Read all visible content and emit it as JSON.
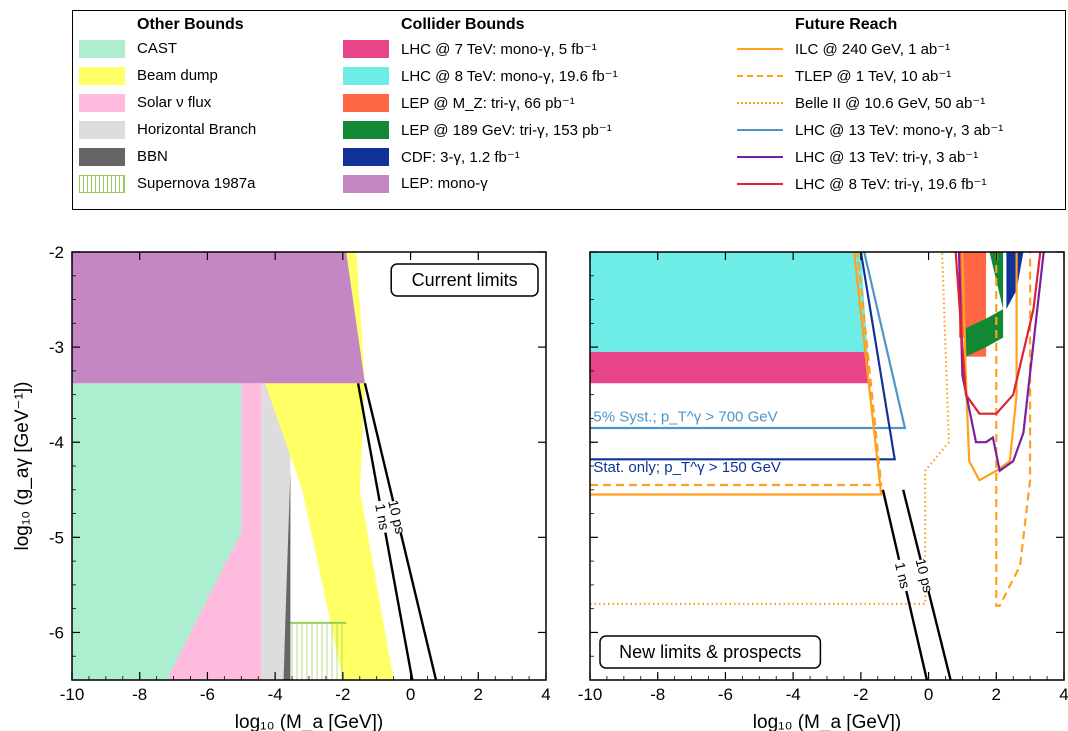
{
  "legend": {
    "groups": [
      {
        "title": "Other Bounds",
        "items": [
          {
            "label": "CAST",
            "color": "#aeeed0",
            "kind": "fill"
          },
          {
            "label": "Beam dump",
            "color": "#ffff66",
            "kind": "fill"
          },
          {
            "label": "Solar ν flux",
            "color": "#ffbbdd",
            "kind": "fill"
          },
          {
            "label": "Horizontal Branch",
            "color": "#dddddd",
            "kind": "fill"
          },
          {
            "label": "BBN",
            "color": "#666666",
            "kind": "fill"
          },
          {
            "label": "Supernova 1987a",
            "color": "#ffffff",
            "edge": "#99cc55",
            "kind": "hatch"
          }
        ]
      },
      {
        "title": "Collider Bounds",
        "items": [
          {
            "label": "LHC @ 7 TeV: mono-γ, 5 fb⁻¹",
            "color": "#e8448a",
            "kind": "fill"
          },
          {
            "label": "LHC @ 8 TeV: mono-γ, 19.6 fb⁻¹",
            "color": "#6eece6",
            "kind": "fill"
          },
          {
            "label": "LEP @ M_Z: tri-γ, 66 pb⁻¹",
            "color": "#ff6644",
            "kind": "fill"
          },
          {
            "label": "LEP @ 189 GeV: tri-γ, 153 pb⁻¹",
            "color": "#118833",
            "kind": "fill"
          },
          {
            "label": "CDF: 3-γ, 1.2 fb⁻¹",
            "color": "#113399",
            "kind": "fill"
          },
          {
            "label": "LEP: mono-γ",
            "color": "#c587c4",
            "kind": "fill"
          }
        ]
      },
      {
        "title": "Future Reach",
        "items": [
          {
            "label": "ILC @ 240 GeV, 1 ab⁻¹",
            "color": "#ffa020",
            "kind": "solid"
          },
          {
            "label": "TLEP @ 1 TeV, 10 ab⁻¹",
            "color": "#ffa020",
            "kind": "dashed"
          },
          {
            "label": "Belle II @ 10.6 GeV, 50 ab⁻¹",
            "color": "#ffa020",
            "kind": "dotted"
          },
          {
            "label": "LHC @ 13 TeV: mono-γ, 3 ab⁻¹",
            "color": "#4f94c8",
            "kind": "solid"
          },
          {
            "label": "LHC @ 13 TeV: tri-γ, 3 ab⁻¹",
            "color": "#7a1fa2",
            "kind": "solid"
          },
          {
            "label": "LHC @ 8 TeV: tri-γ, 19.6 fb⁻¹",
            "color": "#dd2233",
            "kind": "solid"
          }
        ]
      }
    ]
  },
  "chart_data": [
    {
      "type": "area",
      "title": "Current limits",
      "xlabel": "log₁₀ (M_a [GeV])",
      "ylabel": "log₁₀ (g_aγ [GeV⁻¹])",
      "xlim": [
        -10,
        4
      ],
      "ylim": [
        -6.5,
        -2
      ],
      "xticks": [
        "-10",
        "-8",
        "-6",
        "-4",
        "-2",
        "0",
        "2",
        "4"
      ],
      "yticks": [
        "-2",
        "-3",
        "-4",
        "-5",
        "-6"
      ],
      "regions": [
        {
          "name": "CAST",
          "color": "#aeeed0",
          "points": [
            [
              -10,
              -3.38
            ],
            [
              -5.0,
              -3.38
            ],
            [
              -5.0,
              -4.95
            ],
            [
              -7.2,
              -6.5
            ],
            [
              -10,
              -6.5
            ]
          ]
        },
        {
          "name": "Solar ν flux",
          "color": "#ffbbdd",
          "points": [
            [
              -5.0,
              -3.38
            ],
            [
              -4.4,
              -3.38
            ],
            [
              -4.4,
              -6.5
            ],
            [
              -7.2,
              -6.5
            ],
            [
              -5.0,
              -4.95
            ]
          ]
        },
        {
          "name": "Horizontal Branch",
          "color": "#dddddd",
          "points": [
            [
              -4.4,
              -3.38
            ],
            [
              -3.55,
              -3.38
            ],
            [
              -3.55,
              -6.5
            ],
            [
              -4.4,
              -6.5
            ]
          ]
        },
        {
          "name": "BBN",
          "color": "#666666",
          "points": [
            [
              -3.7,
              -5.9
            ],
            [
              -3.55,
              -4.3
            ],
            [
              -3.55,
              -6.5
            ],
            [
              -3.75,
              -6.5
            ]
          ]
        },
        {
          "name": "Beam dump",
          "color": "#ffff66",
          "points": [
            [
              -1.9,
              -2.0
            ],
            [
              -1.6,
              -2.0
            ],
            [
              -1.35,
              -3.38
            ],
            [
              -1.5,
              -4.5
            ],
            [
              -0.5,
              -6.5
            ],
            [
              -2.0,
              -6.5
            ],
            [
              -3.2,
              -4.5
            ],
            [
              -4.3,
              -3.38
            ]
          ]
        },
        {
          "name": "LEP: mono-γ",
          "color": "#c587c4",
          "points": [
            [
              -10,
              -2.0
            ],
            [
              -1.9,
              -2.0
            ],
            [
              -1.35,
              -3.38
            ],
            [
              -10,
              -3.38
            ]
          ]
        }
      ],
      "supernova": {
        "color": "#99cc55",
        "x": [
          -3.55,
          -1.9
        ],
        "y": [
          -6.5,
          -5.9
        ]
      },
      "lifetime_lines": [
        {
          "label": "1 ns",
          "points": [
            [
              -1.55,
              -3.38
            ],
            [
              0.05,
              -6.5
            ]
          ]
        },
        {
          "label": "10 ps",
          "points": [
            [
              -1.35,
              -3.38
            ],
            [
              0.75,
              -6.5
            ]
          ]
        }
      ]
    },
    {
      "type": "area",
      "title": "New limits & prospects",
      "xlabel": "log₁₀ (M_a [GeV])",
      "xlim": [
        -10,
        4
      ],
      "ylim": [
        -6.5,
        -2
      ],
      "xticks": [
        "-10",
        "-8",
        "-6",
        "-4",
        "-2",
        "0",
        "2",
        "4"
      ],
      "annotations": [
        {
          "text": "5% Syst.; p_T^γ > 700 GeV",
          "color": "#4f94c8",
          "x": -9.9,
          "y": -3.72
        },
        {
          "text": "Stat. only; p_T^γ > 150 GeV",
          "color": "#113399",
          "x": -9.9,
          "y": -4.25
        }
      ],
      "regions": [
        {
          "name": "LHC @ 8 TeV: mono-γ",
          "color": "#6eece6",
          "points": [
            [
              -10,
              -2.0
            ],
            [
              -2.0,
              -2.0
            ],
            [
              -1.8,
              -3.05
            ],
            [
              -10,
              -3.05
            ]
          ]
        },
        {
          "name": "LHC @ 7 TeV: mono-γ",
          "color": "#e8448a",
          "points": [
            [
              -10,
              -3.05
            ],
            [
              -1.8,
              -3.05
            ],
            [
              -1.75,
              -3.38
            ],
            [
              -10,
              -3.38
            ]
          ]
        },
        {
          "name": "LEP @ M_Z: tri-γ",
          "color": "#ff6644",
          "points": [
            [
              0.9,
              -2.0
            ],
            [
              1.7,
              -2.0
            ],
            [
              1.7,
              -3.1
            ],
            [
              1.1,
              -3.1
            ],
            [
              1.1,
              -2.9
            ],
            [
              0.9,
              -2.9
            ]
          ]
        },
        {
          "name": "LEP @ 189 GeV: tri-γ",
          "color": "#118833",
          "points": [
            [
              1.8,
              -2.0
            ],
            [
              2.2,
              -2.0
            ],
            [
              2.2,
              -2.6
            ],
            [
              1.7,
              -2.7
            ],
            [
              1.1,
              -2.8
            ],
            [
              1.1,
              -3.1
            ],
            [
              1.7,
              -3.0
            ],
            [
              2.2,
              -2.9
            ],
            [
              2.2,
              -2.6
            ]
          ]
        },
        {
          "name": "CDF: 3-γ",
          "color": "#113399",
          "points": [
            [
              2.3,
              -2.0
            ],
            [
              2.8,
              -2.0
            ],
            [
              2.6,
              -2.4
            ],
            [
              2.3,
              -2.6
            ]
          ]
        }
      ],
      "lines": [
        {
          "name": "LHC @ 13 TeV: mono-γ",
          "color": "#4f94c8",
          "style": "solid",
          "points": [
            [
              -10,
              -3.85
            ],
            [
              -0.7,
              -3.85
            ],
            [
              -1.9,
              -2.0
            ]
          ]
        },
        {
          "name": "Stat. only",
          "color": "#113399",
          "style": "solid",
          "points": [
            [
              -10,
              -4.18
            ],
            [
              -1.0,
              -4.18
            ],
            [
              -2.0,
              -2.0
            ]
          ]
        },
        {
          "name": "ILC @ 240 GeV",
          "color": "#ffa020",
          "style": "solid",
          "points": [
            [
              -10,
              -4.55
            ],
            [
              -1.4,
              -4.55
            ],
            [
              -2.2,
              -2.0
            ]
          ]
        },
        {
          "name": "TLEP @ 1 TeV",
          "color": "#ffa020",
          "style": "dashed",
          "points": [
            [
              -10,
              -4.45
            ],
            [
              -1.4,
              -4.45
            ],
            [
              -2.1,
              -2.0
            ]
          ]
        },
        {
          "name": "Belle II @ 10.6 GeV",
          "color": "#ffa020",
          "style": "dotted",
          "points": [
            [
              -10,
              -5.7
            ],
            [
              -0.1,
              -5.7
            ],
            [
              -0.1,
              -4.3
            ],
            [
              0.6,
              -4.0
            ],
            [
              0.4,
              -2.0
            ]
          ]
        },
        {
          "name": "ILC future tri-γ",
          "color": "#ffa020",
          "style": "solid",
          "points": [
            [
              1.0,
              -2.0
            ],
            [
              1.1,
              -3.3
            ],
            [
              1.2,
              -4.2
            ],
            [
              1.5,
              -4.4
            ],
            [
              2.0,
              -4.3
            ],
            [
              2.4,
              -4.2
            ],
            [
              2.6,
              -3.5
            ],
            [
              2.6,
              -2.0
            ]
          ]
        },
        {
          "name": "TLEP future tri-γ",
          "color": "#ffa020",
          "style": "dashed",
          "points": [
            [
              2.0,
              -2.0
            ],
            [
              2.0,
              -5.72
            ],
            [
              2.1,
              -5.72
            ],
            [
              2.7,
              -5.3
            ],
            [
              3.0,
              -4.4
            ],
            [
              3.0,
              -2.0
            ]
          ]
        },
        {
          "name": "LHC @ 13 TeV: tri-γ",
          "color": "#7a1fa2",
          "style": "solid",
          "points": [
            [
              0.9,
              -2.0
            ],
            [
              1.0,
              -3.3
            ],
            [
              1.4,
              -4.0
            ],
            [
              1.7,
              -4.0
            ],
            [
              1.9,
              -3.95
            ],
            [
              2.1,
              -4.3
            ],
            [
              2.5,
              -4.2
            ],
            [
              2.8,
              -3.9
            ],
            [
              3.4,
              -2.0
            ]
          ]
        },
        {
          "name": "LHC @ 8 TeV: tri-γ",
          "color": "#dd2233",
          "style": "solid",
          "points": [
            [
              0.8,
              -2.0
            ],
            [
              1.1,
              -3.5
            ],
            [
              1.5,
              -3.7
            ],
            [
              2.0,
              -3.7
            ],
            [
              2.5,
              -3.5
            ],
            [
              3.1,
              -2.6
            ],
            [
              3.3,
              -2.0
            ]
          ]
        }
      ],
      "lifetime_lines": [
        {
          "label": "1 ns",
          "points": [
            [
              -1.35,
              -4.5
            ],
            [
              -0.05,
              -6.5
            ]
          ]
        },
        {
          "label": "10 ps",
          "points": [
            [
              -0.75,
              -4.5
            ],
            [
              0.65,
              -6.5
            ]
          ]
        }
      ]
    }
  ]
}
